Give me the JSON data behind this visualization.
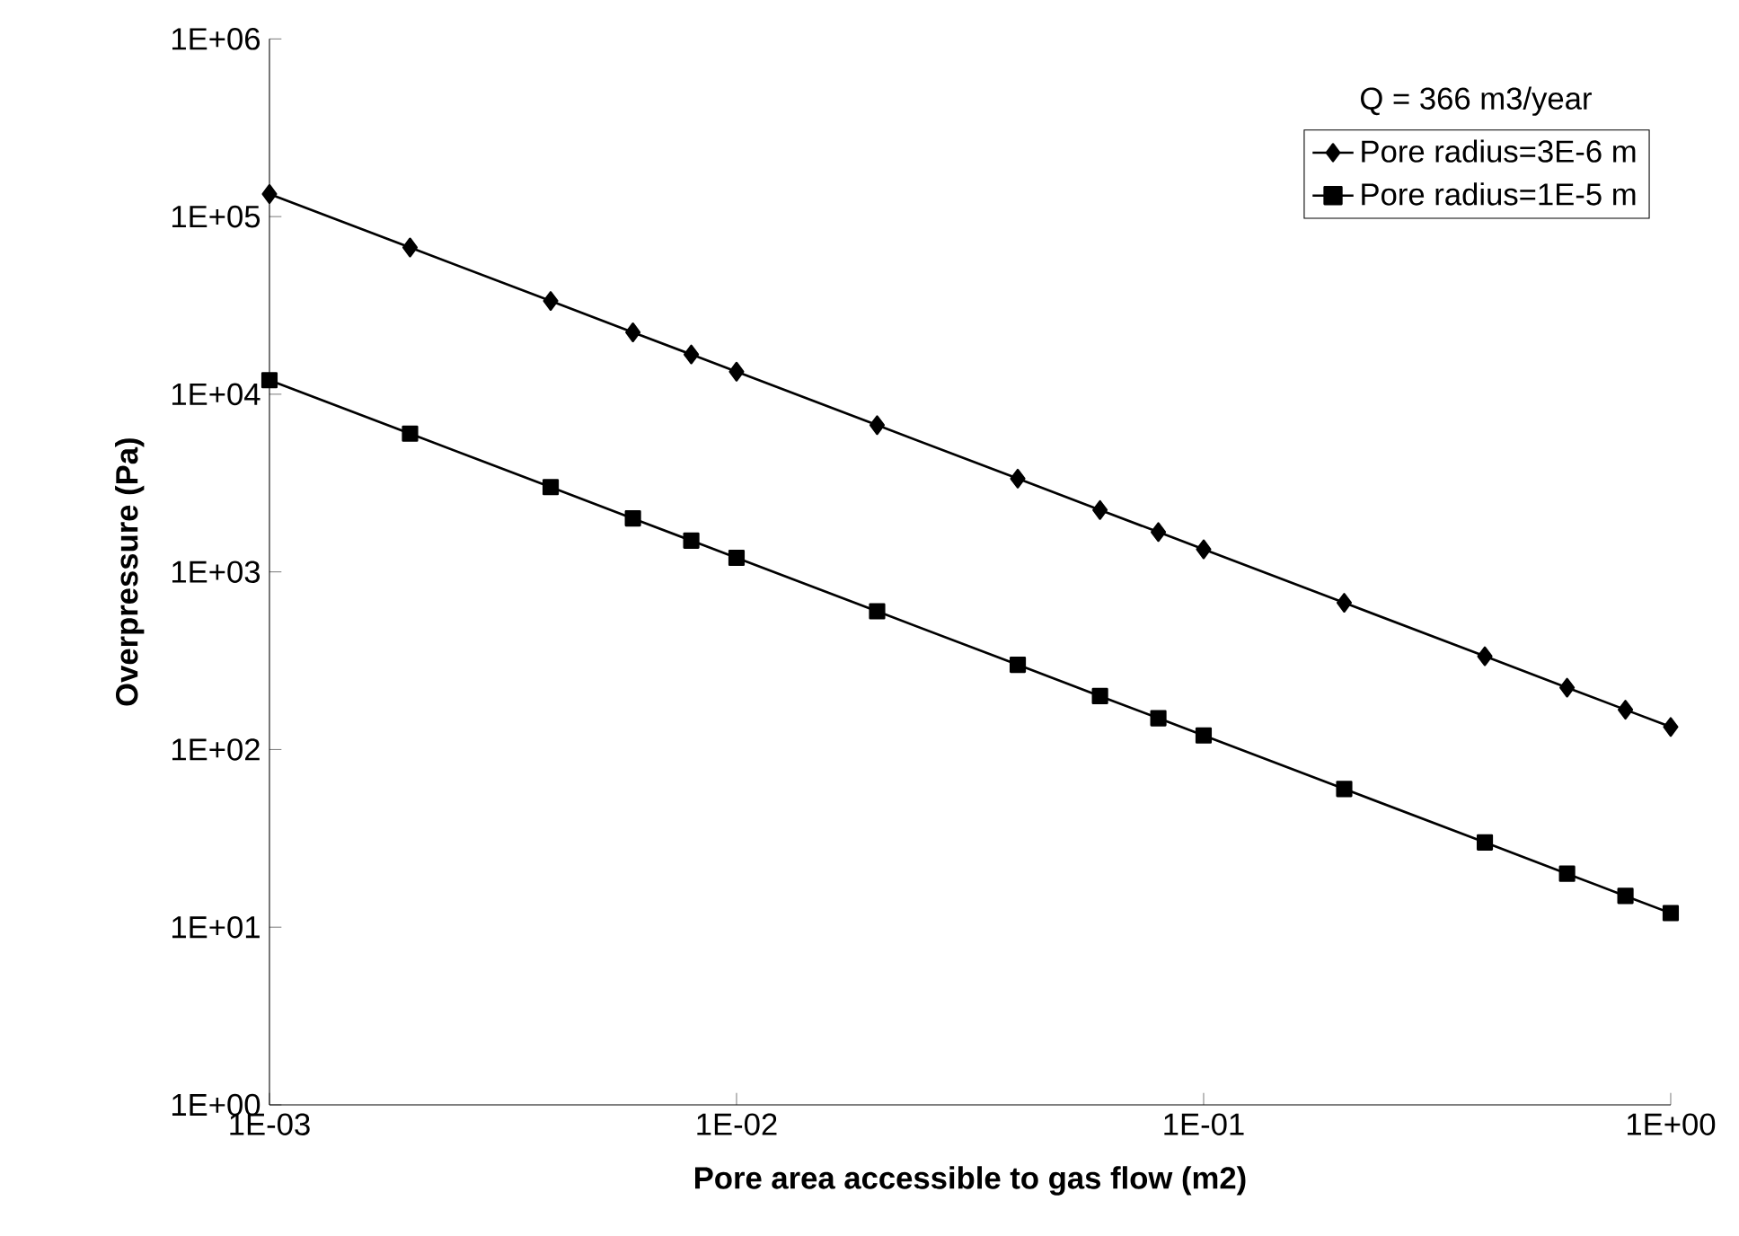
{
  "chart_data": {
    "type": "line",
    "xlabel": "Pore area accessible to gas flow (m2)",
    "ylabel": "Overpressure (Pa)",
    "legend_title": "Q = 366 m3/year",
    "x": [
      0.001,
      0.002,
      0.004,
      0.006,
      0.008,
      0.01,
      0.02,
      0.04,
      0.06,
      0.08,
      0.1,
      0.2,
      0.4,
      0.6,
      0.8,
      1
    ],
    "series": [
      {
        "name": "Pore radius=3E-6 m",
        "color": "#000000",
        "marker": "diamond",
        "values": [
          134000,
          67000,
          33500,
          22300,
          16750,
          13400,
          6700,
          3350,
          2230,
          1675,
          1340,
          670,
          335,
          223,
          167.5,
          134
        ]
      },
      {
        "name": "Pore radius=1E-5 m",
        "color": "#000000",
        "marker": "square",
        "values": [
          12000,
          6000,
          3000,
          2000,
          1500,
          1200,
          600,
          300,
          200,
          150,
          120,
          60,
          30,
          20,
          15,
          12
        ]
      }
    ],
    "log": "xy",
    "xlim": [
      0.001,
      1
    ],
    "ylim": [
      1,
      1000000
    ],
    "xticks": [
      {
        "value": 0.001,
        "label": "1E-03"
      },
      {
        "value": 0.01,
        "label": "1E-02"
      },
      {
        "value": 0.1,
        "label": "1E-01"
      },
      {
        "value": 1,
        "label": "1E+00"
      }
    ],
    "yticks": [
      {
        "value": 1,
        "label": "1E+00"
      },
      {
        "value": 10,
        "label": "1E+01"
      },
      {
        "value": 100,
        "label": "1E+02"
      },
      {
        "value": 1000,
        "label": "1E+03"
      },
      {
        "value": 10000,
        "label": "1E+04"
      },
      {
        "value": 100000,
        "label": "1E+05"
      },
      {
        "value": 1000000,
        "label": "1E+06"
      }
    ],
    "grid": false,
    "legend": "top right",
    "line_style": "solid"
  }
}
